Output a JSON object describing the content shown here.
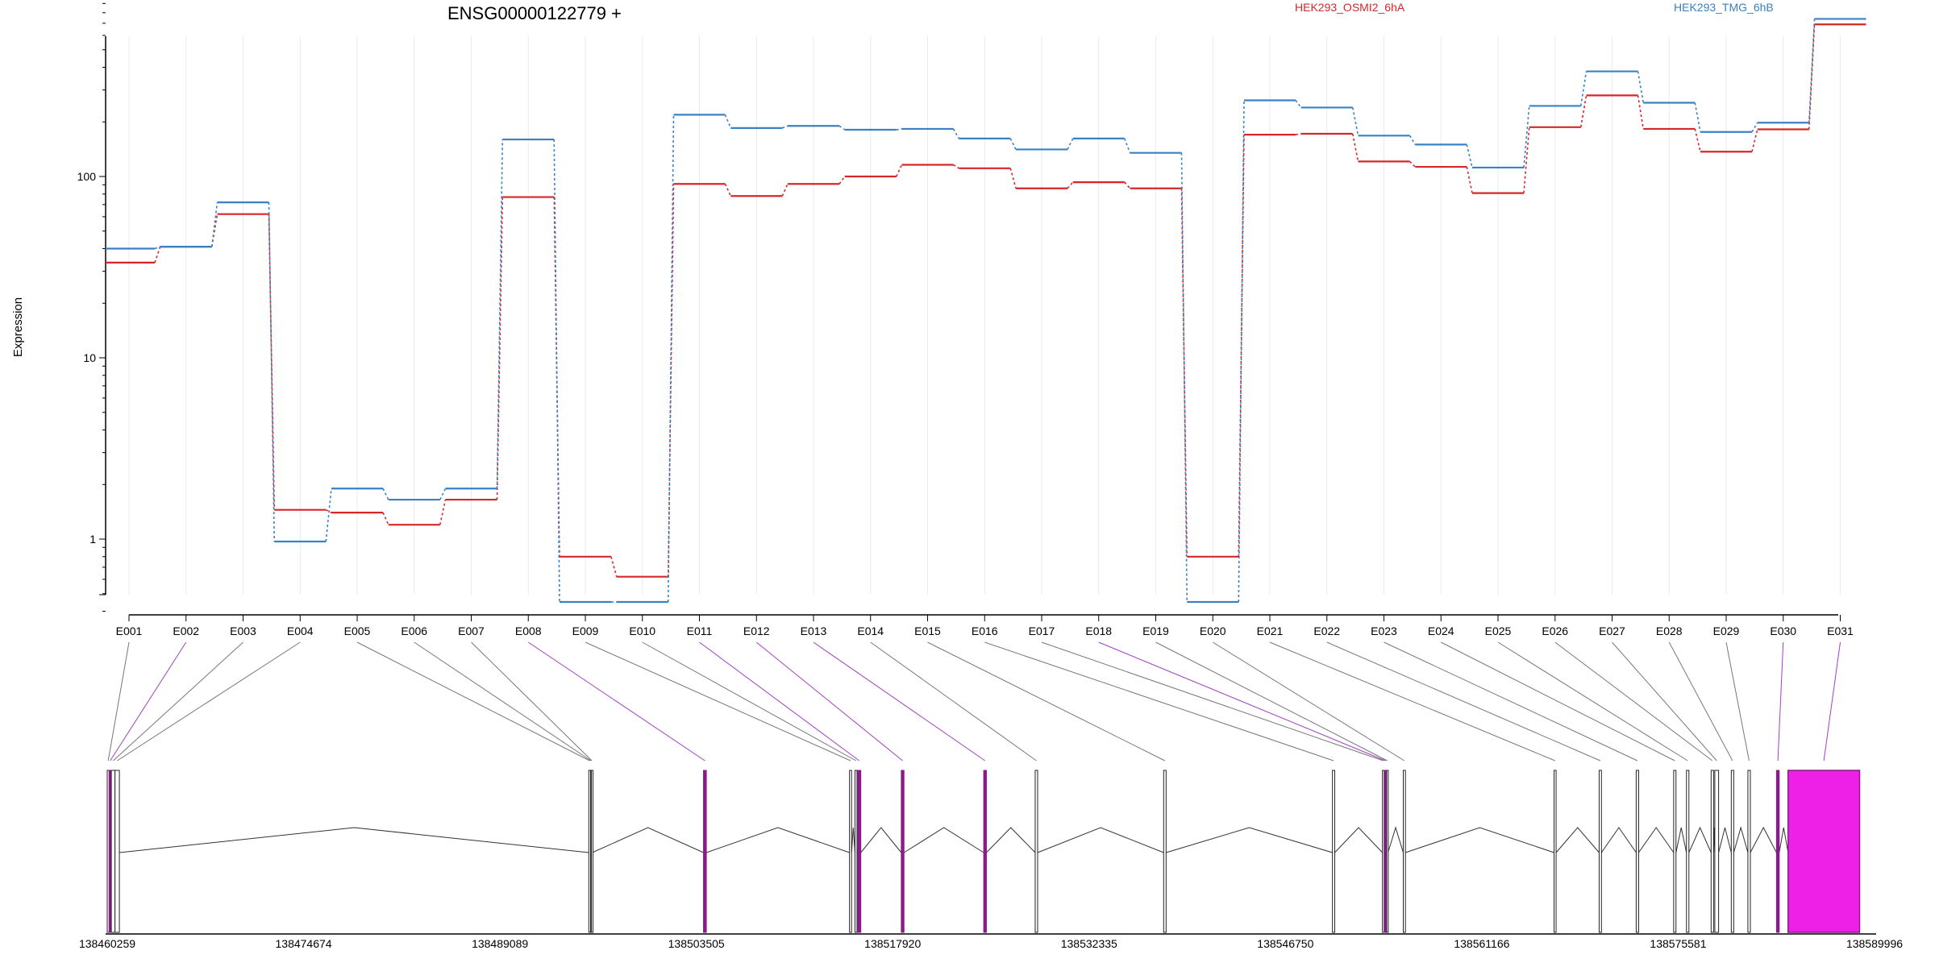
{
  "chart_data": {
    "type": "line",
    "title": "ENSG00000122779 +",
    "ylabel": "Expression",
    "xlabel": "",
    "yscale": "log",
    "ylim": [
      0.35,
      1000
    ],
    "yticks": [
      1,
      10,
      100
    ],
    "yticklabels": [
      "1",
      "10",
      "100"
    ],
    "grid": true,
    "legend_placement": "top",
    "categories": [
      "E001",
      "E002",
      "E003",
      "E004",
      "E005",
      "E006",
      "E007",
      "E008",
      "E009",
      "E010",
      "E011",
      "E012",
      "E013",
      "E014",
      "E015",
      "E016",
      "E017",
      "E018",
      "E019",
      "E020",
      "E021",
      "E022",
      "E023",
      "E024",
      "E025",
      "E026",
      "E027",
      "E028",
      "E029",
      "E030",
      "E031"
    ],
    "series": [
      {
        "name": "HEK293_OSMI2_6hA",
        "color": "#d62728",
        "values": [
          33.5,
          41,
          62,
          1.45,
          1.4,
          1.2,
          1.65,
          77,
          0.8,
          0.62,
          91,
          78,
          91,
          100,
          116,
          111,
          86,
          93,
          86,
          0.8,
          170,
          172,
          121,
          113,
          81,
          187,
          280,
          183,
          137,
          182,
          690
        ]
      },
      {
        "name": "HEK293_TMG_6hB",
        "color": "#3a80c4",
        "values": [
          40,
          41,
          72,
          0.97,
          1.9,
          1.65,
          1.9,
          160,
          0.45,
          0.45,
          219,
          185,
          190,
          181,
          183,
          162,
          141,
          162,
          135,
          0.45,
          263,
          240,
          168,
          150,
          112,
          245,
          380,
          255,
          176,
          198,
          740
        ]
      }
    ],
    "gene_model": {
      "coordinate_labels": [
        "138460259",
        "138474674",
        "138489089",
        "138503505",
        "138517920",
        "138532335",
        "138546750",
        "138561166",
        "138575581",
        "138589996"
      ],
      "exons": [
        {
          "id": "E001",
          "start": 138460259,
          "end": 138460400,
          "highlight": false
        },
        {
          "id": "E002",
          "start": 138460400,
          "end": 138460560,
          "highlight": true
        },
        {
          "id": "E003",
          "start": 138460560,
          "end": 138460830,
          "highlight": false
        },
        {
          "id": "E004",
          "start": 138460830,
          "end": 138461150,
          "highlight": false
        },
        {
          "id": "E005",
          "start": 138495610,
          "end": 138495740,
          "highlight": false
        },
        {
          "id": "E006",
          "start": 138495740,
          "end": 138495800,
          "highlight": false
        },
        {
          "id": "E007",
          "start": 138495800,
          "end": 138495870,
          "highlight": false
        },
        {
          "id": "E008",
          "start": 138504030,
          "end": 138504240,
          "highlight": true
        },
        {
          "id": "E009",
          "start": 138514750,
          "end": 138514900,
          "highlight": false
        },
        {
          "id": "E010",
          "start": 138515150,
          "end": 138515300,
          "highlight": false
        },
        {
          "id": "E011",
          "start": 138515350,
          "end": 138515580,
          "highlight": true
        },
        {
          "id": "E012",
          "start": 138518550,
          "end": 138518750,
          "highlight": true
        },
        {
          "id": "E013",
          "start": 138524600,
          "end": 138524800,
          "highlight": true
        },
        {
          "id": "E014",
          "start": 138528380,
          "end": 138528560,
          "highlight": false
        },
        {
          "id": "E015",
          "start": 138537810,
          "end": 138537990,
          "highlight": false
        },
        {
          "id": "E016",
          "start": 138550200,
          "end": 138550370,
          "highlight": false
        },
        {
          "id": "E017",
          "start": 138553870,
          "end": 138554000,
          "highlight": false
        },
        {
          "id": "E018",
          "start": 138554000,
          "end": 138554180,
          "highlight": true
        },
        {
          "id": "E019",
          "start": 138554180,
          "end": 138554280,
          "highlight": false
        },
        {
          "id": "E020",
          "start": 138555400,
          "end": 138555560,
          "highlight": false
        },
        {
          "id": "E021",
          "start": 138566470,
          "end": 138566620,
          "highlight": false
        },
        {
          "id": "E022",
          "start": 138569780,
          "end": 138569950,
          "highlight": false
        },
        {
          "id": "E023",
          "start": 138572500,
          "end": 138572680,
          "highlight": false
        },
        {
          "id": "E024",
          "start": 138575250,
          "end": 138575420,
          "highlight": false
        },
        {
          "id": "E025",
          "start": 138576190,
          "end": 138576370,
          "highlight": false
        },
        {
          "id": "E026",
          "start": 138578000,
          "end": 138578180,
          "highlight": false
        },
        {
          "id": "E027",
          "start": 138578270,
          "end": 138578550,
          "highlight": false
        },
        {
          "id": "E028",
          "start": 138579480,
          "end": 138579660,
          "highlight": false
        },
        {
          "id": "E029",
          "start": 138580700,
          "end": 138580880,
          "highlight": false
        },
        {
          "id": "E030",
          "start": 138582800,
          "end": 138583000,
          "highlight": true
        },
        {
          "id": "E031",
          "start": 138583650,
          "end": 138588900,
          "highlight": true
        }
      ]
    }
  }
}
